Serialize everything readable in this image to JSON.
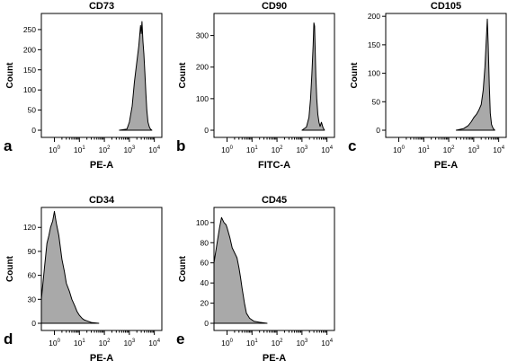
{
  "chart_data": [
    {
      "type": "area",
      "panel_label": "a",
      "title": "CD73",
      "xlabel": "PE-A",
      "ylabel": "Count",
      "x_scale": "log",
      "xlim": [
        0.3,
        20000
      ],
      "ylim": [
        0,
        290
      ],
      "x_ticks": [
        {
          "base": "10",
          "exp": "0"
        },
        {
          "base": "10",
          "exp": "1"
        },
        {
          "base": "10",
          "exp": "2"
        },
        {
          "base": "10",
          "exp": "3"
        },
        {
          "base": "10",
          "exp": "4"
        }
      ],
      "y_ticks": [
        "0",
        "50",
        "100",
        "150",
        "200",
        "250"
      ],
      "fill_color": "#a9a9a9",
      "series": [
        {
          "x": [
            400,
            800,
            1000,
            1300,
            1600,
            2000,
            2400,
            2800,
            3000,
            3200,
            3500,
            3800,
            4200,
            4600,
            5000,
            5600,
            6300,
            7000,
            8000
          ],
          "y": [
            0,
            3,
            20,
            60,
            120,
            170,
            210,
            260,
            240,
            270,
            220,
            190,
            140,
            90,
            50,
            20,
            8,
            3,
            0
          ]
        }
      ]
    },
    {
      "type": "area",
      "panel_label": "b",
      "title": "CD90",
      "xlabel": "FITC-A",
      "ylabel": "Count",
      "x_scale": "log",
      "xlim": [
        0.3,
        20000
      ],
      "ylim": [
        0,
        370
      ],
      "x_ticks": [
        {
          "base": "10",
          "exp": "0"
        },
        {
          "base": "10",
          "exp": "1"
        },
        {
          "base": "10",
          "exp": "2"
        },
        {
          "base": "10",
          "exp": "3"
        },
        {
          "base": "10",
          "exp": "4"
        }
      ],
      "y_ticks": [
        "0",
        "100",
        "200",
        "300"
      ],
      "fill_color": "#a9a9a9",
      "series": [
        {
          "x": [
            1000,
            1500,
            1900,
            2200,
            2500,
            2800,
            3000,
            3200,
            3400,
            3600,
            3900,
            4300,
            4800,
            5300,
            6000,
            7000,
            8000
          ],
          "y": [
            0,
            10,
            40,
            100,
            180,
            270,
            340,
            330,
            250,
            170,
            100,
            50,
            25,
            12,
            25,
            8,
            0
          ]
        }
      ]
    },
    {
      "type": "area",
      "panel_label": "c",
      "title": "CD105",
      "xlabel": "PE-A",
      "ylabel": "Count",
      "x_scale": "log",
      "xlim": [
        0.3,
        20000
      ],
      "ylim": [
        0,
        205
      ],
      "x_ticks": [
        {
          "base": "10",
          "exp": "0"
        },
        {
          "base": "10",
          "exp": "1"
        },
        {
          "base": "10",
          "exp": "2"
        },
        {
          "base": "10",
          "exp": "3"
        },
        {
          "base": "10",
          "exp": "4"
        }
      ],
      "y_ticks": [
        "0",
        "50",
        "100",
        "150",
        "200"
      ],
      "fill_color": "#a9a9a9",
      "series": [
        {
          "x": [
            200,
            400,
            600,
            800,
            1000,
            1300,
            1600,
            2000,
            2400,
            2800,
            3200,
            3500,
            3800,
            4200,
            4600,
            5200,
            6000,
            7000
          ],
          "y": [
            0,
            3,
            8,
            15,
            22,
            28,
            35,
            45,
            70,
            110,
            160,
            195,
            150,
            80,
            30,
            10,
            3,
            0
          ]
        }
      ]
    },
    {
      "type": "area",
      "panel_label": "d",
      "title": "CD34",
      "xlabel": "PE-A",
      "ylabel": "Count",
      "x_scale": "log",
      "xlim": [
        0.3,
        20000
      ],
      "ylim": [
        0,
        145
      ],
      "x_ticks": [
        {
          "base": "10",
          "exp": "0"
        },
        {
          "base": "10",
          "exp": "1"
        },
        {
          "base": "10",
          "exp": "2"
        },
        {
          "base": "10",
          "exp": "3"
        },
        {
          "base": "10",
          "exp": "4"
        }
      ],
      "y_ticks": [
        "0",
        "30",
        "60",
        "90",
        "120"
      ],
      "fill_color": "#a9a9a9",
      "series": [
        {
          "x": [
            0.3,
            0.4,
            0.5,
            0.6,
            0.7,
            0.85,
            1.0,
            1.2,
            1.5,
            2.0,
            2.5,
            3.0,
            4.0,
            5.0,
            6.5,
            8.0,
            10,
            13,
            16,
            20,
            30,
            60
          ],
          "y": [
            30,
            70,
            100,
            110,
            120,
            128,
            140,
            125,
            110,
            80,
            65,
            50,
            40,
            30,
            22,
            15,
            10,
            6,
            4,
            3,
            1,
            0
          ]
        }
      ]
    },
    {
      "type": "area",
      "panel_label": "e",
      "title": "CD45",
      "xlabel": "PE-A",
      "ylabel": "Count",
      "x_scale": "log",
      "xlim": [
        0.3,
        20000
      ],
      "ylim": [
        0,
        115
      ],
      "x_ticks": [
        {
          "base": "10",
          "exp": "0"
        },
        {
          "base": "10",
          "exp": "1"
        },
        {
          "base": "10",
          "exp": "2"
        },
        {
          "base": "10",
          "exp": "3"
        },
        {
          "base": "10",
          "exp": "4"
        }
      ],
      "y_ticks": [
        "0",
        "20",
        "40",
        "60",
        "80",
        "100"
      ],
      "fill_color": "#a9a9a9",
      "series": [
        {
          "x": [
            0.3,
            0.4,
            0.5,
            0.6,
            0.75,
            0.9,
            1.0,
            1.3,
            1.6,
            2.0,
            2.5,
            3.0,
            3.5,
            4.0,
            5.0,
            6.0,
            8.0,
            12,
            20,
            40
          ],
          "y": [
            60,
            80,
            95,
            105,
            100,
            98,
            95,
            85,
            75,
            70,
            65,
            55,
            45,
            35,
            20,
            10,
            5,
            2,
            1,
            0
          ]
        }
      ]
    }
  ]
}
